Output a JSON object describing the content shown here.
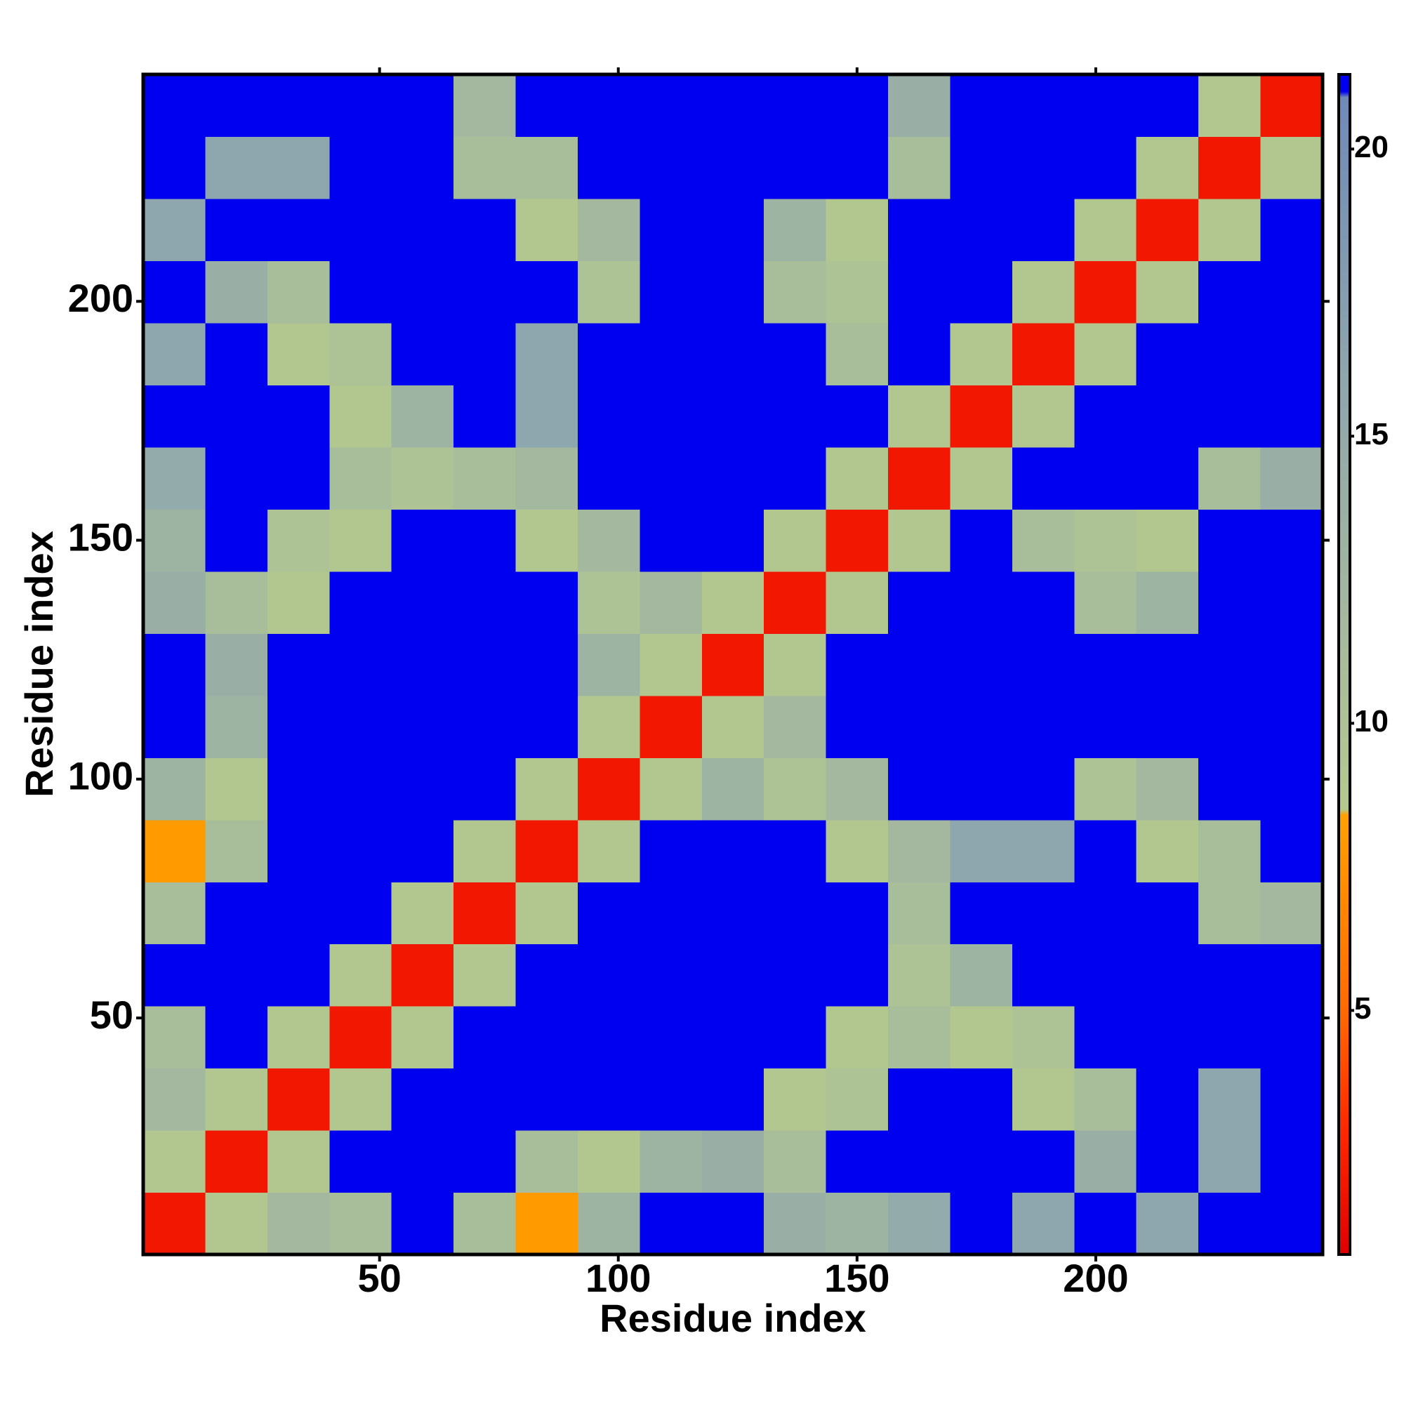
{
  "chart_data": {
    "type": "heatmap",
    "xlabel": "Residue index",
    "ylabel": "Residue index",
    "x": [
      7,
      20,
      33,
      46,
      59,
      72,
      85,
      98,
      111,
      124,
      137,
      150,
      163,
      176,
      189,
      202,
      215,
      228,
      241
    ],
    "y": [
      7,
      20,
      33,
      46,
      59,
      72,
      85,
      98,
      111,
      124,
      137,
      150,
      163,
      176,
      189,
      202,
      215,
      228,
      241
    ],
    "z": [
      [
        2,
        9,
        12,
        11,
        21,
        11,
        8,
        13,
        21,
        21,
        14,
        13,
        15,
        21,
        16,
        21,
        16,
        21,
        21
      ],
      [
        9,
        2,
        9,
        21,
        21,
        21,
        11,
        9,
        13,
        14,
        11,
        21,
        21,
        21,
        21,
        14,
        21,
        16,
        21
      ],
      [
        12,
        9,
        2,
        9,
        21,
        21,
        21,
        21,
        21,
        21,
        9,
        10,
        21,
        21,
        9,
        11,
        21,
        16,
        21
      ],
      [
        11,
        21,
        9,
        2,
        9,
        21,
        21,
        21,
        21,
        21,
        21,
        9,
        11,
        9,
        10,
        21,
        21,
        21,
        21
      ],
      [
        21,
        21,
        21,
        9,
        2,
        9,
        21,
        21,
        21,
        21,
        21,
        21,
        10,
        13,
        21,
        21,
        21,
        21,
        21
      ],
      [
        11,
        21,
        21,
        21,
        9,
        2,
        9,
        21,
        21,
        21,
        21,
        21,
        11,
        21,
        21,
        21,
        21,
        11,
        12
      ],
      [
        8,
        11,
        21,
        21,
        21,
        9,
        2,
        9,
        21,
        21,
        21,
        9,
        12,
        16,
        16,
        21,
        9,
        11,
        21
      ],
      [
        13,
        9,
        21,
        21,
        21,
        21,
        9,
        2,
        9,
        13,
        10,
        12,
        21,
        21,
        21,
        10,
        12,
        21,
        21
      ],
      [
        21,
        13,
        21,
        21,
        21,
        21,
        21,
        9,
        2,
        9,
        12,
        21,
        21,
        21,
        21,
        21,
        21,
        21,
        21
      ],
      [
        21,
        14,
        21,
        21,
        21,
        21,
        21,
        13,
        9,
        2,
        9,
        21,
        21,
        21,
        21,
        21,
        21,
        21,
        21
      ],
      [
        14,
        11,
        9,
        21,
        21,
        21,
        21,
        10,
        12,
        9,
        2,
        9,
        21,
        21,
        21,
        11,
        13,
        21,
        21
      ],
      [
        13,
        21,
        10,
        9,
        21,
        21,
        9,
        12,
        21,
        21,
        9,
        2,
        9,
        21,
        11,
        10,
        9,
        21,
        21
      ],
      [
        15,
        21,
        21,
        11,
        10,
        11,
        12,
        21,
        21,
        21,
        21,
        9,
        2,
        9,
        21,
        21,
        21,
        11,
        14
      ],
      [
        21,
        21,
        21,
        9,
        13,
        21,
        16,
        21,
        21,
        21,
        21,
        21,
        9,
        2,
        9,
        21,
        21,
        21,
        21
      ],
      [
        16,
        21,
        9,
        10,
        21,
        21,
        16,
        21,
        21,
        21,
        21,
        11,
        21,
        9,
        2,
        9,
        21,
        21,
        21
      ],
      [
        21,
        14,
        11,
        21,
        21,
        21,
        21,
        10,
        21,
        21,
        11,
        10,
        21,
        21,
        9,
        2,
        9,
        21,
        21
      ],
      [
        16,
        21,
        21,
        21,
        21,
        21,
        9,
        12,
        21,
        21,
        13,
        9,
        21,
        21,
        21,
        9,
        2,
        9,
        21
      ],
      [
        21,
        16,
        16,
        21,
        21,
        11,
        11,
        21,
        21,
        21,
        21,
        21,
        11,
        21,
        21,
        21,
        9,
        2,
        9
      ],
      [
        21,
        21,
        21,
        21,
        21,
        12,
        21,
        21,
        21,
        21,
        21,
        21,
        14,
        21,
        21,
        21,
        21,
        9,
        2
      ]
    ],
    "xlim": [
      0.5,
      247.5
    ],
    "ylim": [
      0.5,
      247.5
    ],
    "xticks": [
      50,
      100,
      150,
      200
    ],
    "yticks": [
      50,
      100,
      150,
      200
    ],
    "zlim": [
      0.75,
      21.3
    ],
    "colorbar_ticks": [
      5,
      10,
      15,
      20
    ],
    "colorscale": [
      [
        0.75,
        "#e00000"
      ],
      [
        3,
        "#ff2a00"
      ],
      [
        5,
        "#ff6a00"
      ],
      [
        8.4,
        "#ffa000"
      ],
      [
        8.5,
        "#b5c98e"
      ],
      [
        12,
        "#a3b89e"
      ],
      [
        16,
        "#8ea6ae"
      ],
      [
        20.9,
        "#6f8ab8"
      ],
      [
        21,
        "#0000f0"
      ],
      [
        21.3,
        "#0000f0"
      ]
    ]
  }
}
